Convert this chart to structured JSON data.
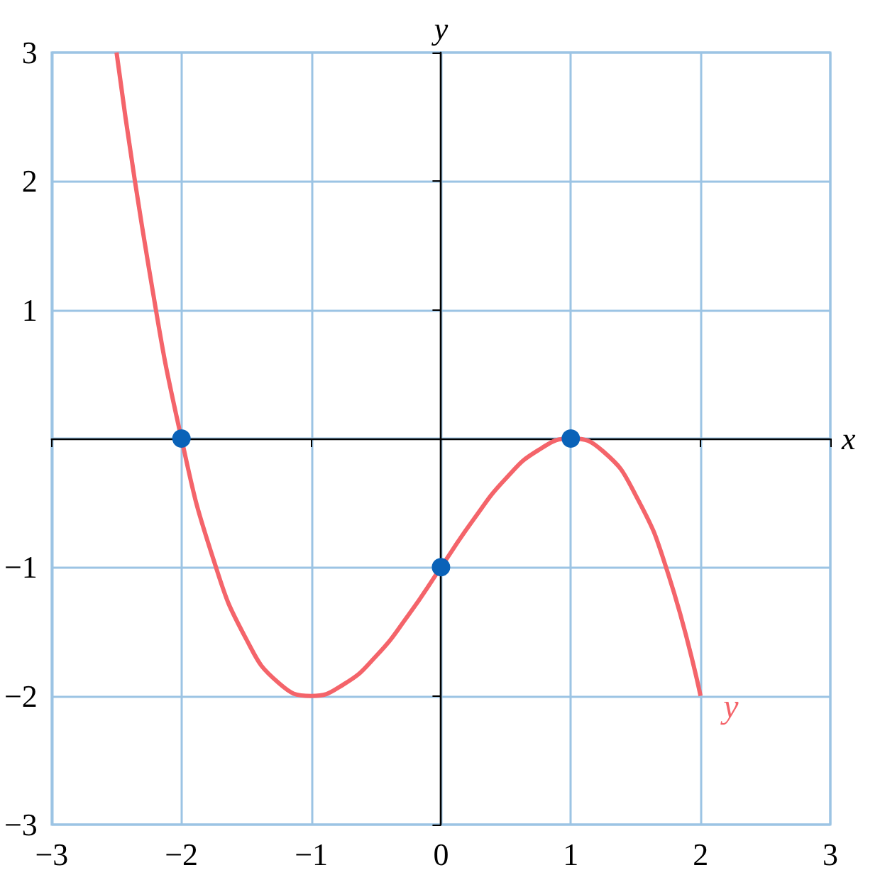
{
  "chart_data": {
    "type": "line",
    "xlabel": "x",
    "ylabel": "y",
    "xlim": [
      -3,
      3
    ],
    "ylim": [
      -3,
      3
    ],
    "xticks": [
      -3,
      -2,
      -1,
      0,
      1,
      2,
      3
    ],
    "yticks": [
      -3,
      -2,
      -1,
      {
        "value": 0,
        "label": null
      },
      1,
      2,
      3
    ],
    "grid": true,
    "legend": false,
    "series": [
      {
        "name": "y",
        "color": "#f4646a",
        "marker": "none",
        "x": [
          -2.5,
          -2.25,
          -2,
          -1.75,
          -1.5,
          -1.25,
          -1,
          -0.75,
          -0.5,
          -0.25,
          0,
          0.25,
          0.5,
          0.75,
          1,
          1.25,
          1.5,
          1.75,
          2
        ],
        "values": [
          3,
          1.32,
          0,
          -0.95,
          -1.56,
          -1.9,
          -2,
          -1.91,
          -1.69,
          -1.37,
          -1,
          -0.63,
          -0.31,
          -0.09,
          0,
          -0.1,
          -0.44,
          -1.05,
          -2
        ]
      },
      {
        "type": "scatter",
        "color": "#0a62b8",
        "marker": "circle",
        "x": [
          -2,
          0,
          1
        ],
        "values": [
          0,
          -1,
          0
        ]
      }
    ]
  }
}
